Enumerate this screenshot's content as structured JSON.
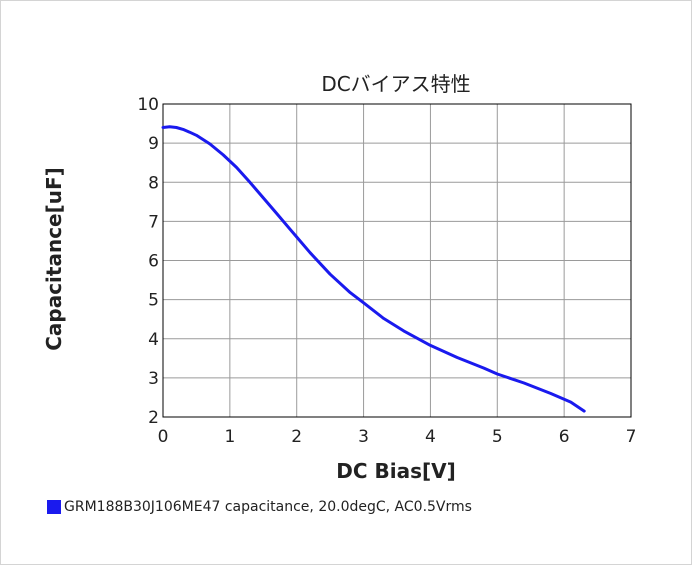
{
  "chart_data": {
    "type": "line",
    "title": "DCバイアス特性",
    "xlabel": "DC Bias[V]",
    "ylabel": "Capacitance[uF]",
    "xlim": [
      0,
      7
    ],
    "ylim": [
      2,
      10
    ],
    "xticks": [
      "0",
      "1",
      "2",
      "3",
      "4",
      "5",
      "6",
      "7"
    ],
    "yticks": [
      "2",
      "3",
      "4",
      "5",
      "6",
      "7",
      "8",
      "9",
      "10"
    ],
    "grid": true,
    "legend_position": "bottom-left",
    "series": [
      {
        "name": "GRM188B30J106ME47 capacitance, 20.0degC, AC0.5Vrms",
        "color": "#1a1aee",
        "x": [
          0.0,
          0.1,
          0.2,
          0.3,
          0.4,
          0.5,
          0.7,
          0.9,
          1.1,
          1.3,
          1.5,
          1.7,
          1.9,
          2.0,
          2.2,
          2.5,
          2.8,
          3.0,
          3.3,
          3.6,
          4.0,
          4.4,
          4.8,
          5.0,
          5.4,
          5.8,
          6.1,
          6.3
        ],
        "y": [
          9.4,
          9.42,
          9.4,
          9.35,
          9.28,
          9.2,
          8.98,
          8.7,
          8.38,
          8.0,
          7.6,
          7.2,
          6.8,
          6.6,
          6.2,
          5.65,
          5.18,
          4.92,
          4.52,
          4.2,
          3.83,
          3.52,
          3.25,
          3.1,
          2.87,
          2.6,
          2.38,
          2.15
        ]
      }
    ]
  }
}
